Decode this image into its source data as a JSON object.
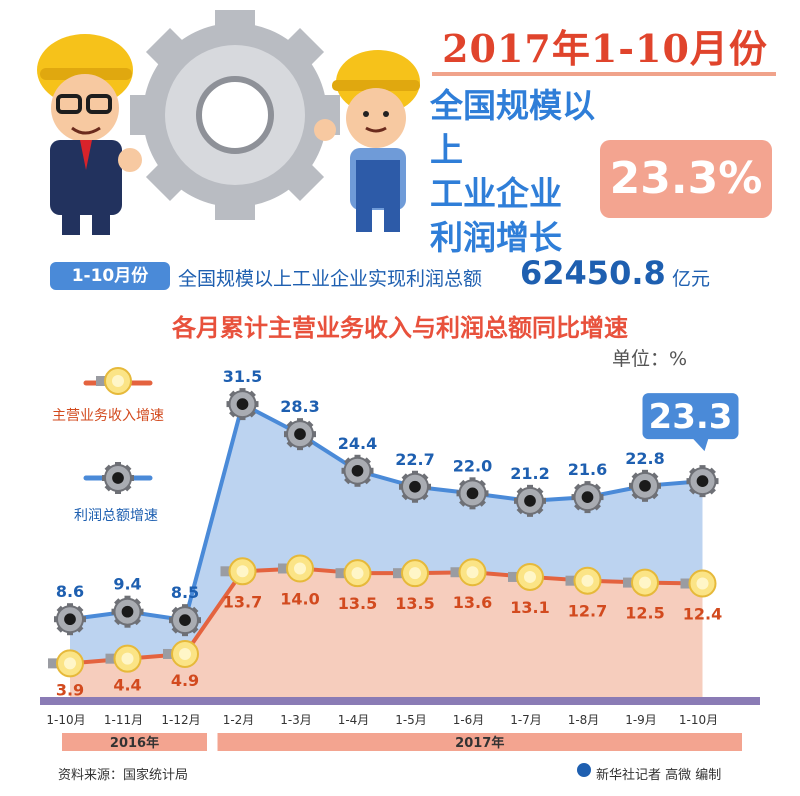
{
  "header": {
    "title": "2017年1-10月份",
    "subtitle_lines": [
      "全国规模以上",
      "工业企业",
      "利润增长"
    ],
    "badge": "23.3%"
  },
  "summary": {
    "tag": "1-10月份",
    "text": "全国规模以上工业企业实现利润总额",
    "value": "62450.8",
    "unit": "亿元"
  },
  "chart_data": {
    "type": "line",
    "title": "各月累计主营业务收入与利润总额同比增速",
    "unit_label": "单位：%",
    "categories": [
      "1-10月",
      "1-11月",
      "1-12月",
      "1-2月",
      "1-3月",
      "1-4月",
      "1-5月",
      "1-6月",
      "1-7月",
      "1-8月",
      "1-9月",
      "1-10月"
    ],
    "year_groups": [
      {
        "label": "2016年",
        "count": 3
      },
      {
        "label": "2017年",
        "count": 9
      }
    ],
    "series": [
      {
        "name": "主营业务收入增速",
        "values": [
          3.9,
          4.4,
          4.9,
          13.7,
          14.0,
          13.5,
          13.5,
          13.6,
          13.1,
          12.7,
          12.5,
          12.4
        ],
        "color": "#e4633f",
        "fill": "#f6cdbd"
      },
      {
        "name": "利润总额增速",
        "values": [
          8.6,
          9.4,
          8.5,
          31.5,
          28.3,
          24.4,
          22.7,
          22.0,
          21.2,
          21.6,
          22.8,
          23.3
        ],
        "color": "#4a8ad8",
        "fill": "#bcd3f0"
      }
    ],
    "highlight": "23.3",
    "ylim": [
      0,
      35
    ],
    "grid": false,
    "legend": "left"
  },
  "footer": {
    "source": "资料来源：国家统计局",
    "credit": "新华社记者 高微 编制"
  },
  "colors": {
    "accent_red": "#e0442c",
    "accent_blue": "#2f7ed8",
    "bar_purple": "#8a7bb5",
    "band_salmon": "#f3a490"
  },
  "illustration": {
    "left_figure": "worker-with-glasses-thumbs-up-icon",
    "gear": "silver-gear-icon",
    "right_figure": "worker-in-overalls-icon"
  }
}
